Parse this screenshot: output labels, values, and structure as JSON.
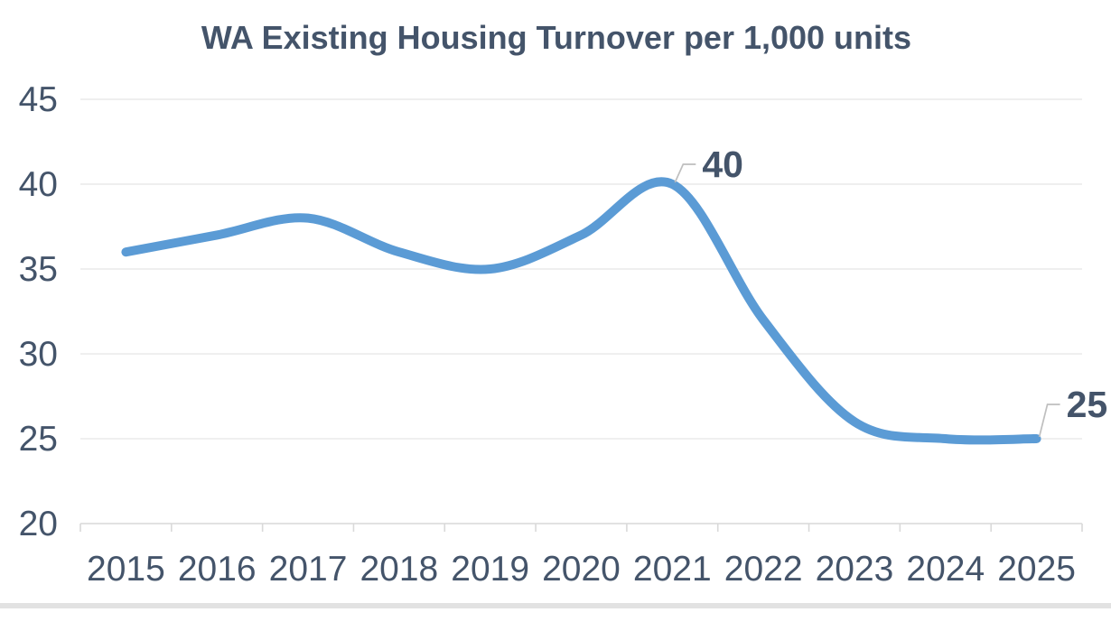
{
  "chart_data": {
    "type": "line",
    "title": "WA Existing Housing Turnover per 1,000 units",
    "categories": [
      "2015",
      "2016",
      "2017",
      "2018",
      "2019",
      "2020",
      "2021",
      "2022",
      "2023",
      "2024",
      "2025"
    ],
    "series": [
      {
        "name": "WA existing housing turnover per 1,000 units",
        "values": [
          36,
          37,
          38,
          36,
          35,
          37,
          40,
          32,
          26,
          25,
          25
        ]
      }
    ],
    "smooth_line": true,
    "xlabel": "",
    "ylabel": "",
    "ylim": [
      20,
      45
    ],
    "yticks": [
      45,
      40,
      35,
      30,
      25,
      20
    ],
    "grid": "horizontal",
    "legend": "none",
    "data_labels": [
      {
        "category": "2021",
        "value": 40,
        "text": "40",
        "leader_rise": 22
      },
      {
        "category": "2025",
        "value": 25,
        "text": "25",
        "leader_rise": 38
      }
    ],
    "colors": {
      "line": "#5B9BD5",
      "text": "#44546A",
      "gridline": "#EAEAEA",
      "axis_line": "#D9D9D9",
      "leader_line": "#BFBFBF",
      "background": "#FFFFFF",
      "bottom_divider": "#E2E2E2"
    }
  }
}
